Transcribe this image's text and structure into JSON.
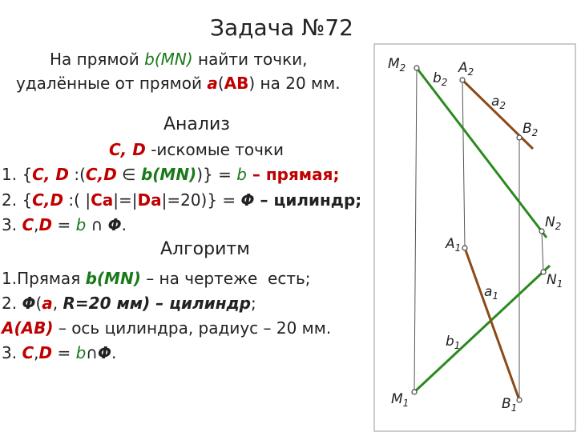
{
  "title": "Задача №72",
  "task": {
    "lines": [
      [
        "На прямой ",
        "b(MN)",
        " найти точки,"
      ],
      [
        "удалённые от прямой ",
        "a",
        "(",
        "AB",
        ") на 20 мм."
      ]
    ]
  },
  "analysis": {
    "heading": "Анализ",
    "lines": [
      [
        "C, D",
        " -искомые точки"
      ],
      [
        "1. {",
        "C, D",
        " :(",
        "C,D",
        " ∈ ",
        "b(MN)",
        ")} = ",
        "b",
        " – прямая;"
      ],
      [
        "2. {",
        "C,D",
        " :( |",
        "Ca",
        "|=|",
        "Da",
        "|=20)} = ",
        "Φ",
        " – цилиндр;"
      ],
      [
        "3. ",
        "C",
        ",",
        "D",
        " = ",
        "b",
        " ∩ ",
        "Φ",
        "."
      ]
    ]
  },
  "algorithm": {
    "heading": "Алгоритм",
    "lines": [
      [
        "1.Прямая ",
        "b(MN)",
        " – на чертеже  есть;"
      ],
      [
        "2. ",
        "Φ",
        "(",
        "a",
        ", ",
        "R=20 мм) – цилиндр",
        ";"
      ],
      [
        "A(AB)",
        " – ось цилиндра, радиус – 20 мм."
      ],
      [
        "3. ",
        "C",
        ",",
        "D",
        " = ",
        "b",
        "∩",
        "Φ",
        "."
      ]
    ]
  },
  "drawing": {
    "labels": [
      {
        "name": "M",
        "index": "2"
      },
      {
        "name": "b",
        "index": "2"
      },
      {
        "name": "A",
        "index": "2"
      },
      {
        "name": "a",
        "index": "2"
      },
      {
        "name": "B",
        "index": "2"
      },
      {
        "name": "N",
        "index": "2"
      },
      {
        "name": "A",
        "index": "1"
      },
      {
        "name": "a",
        "index": "1"
      },
      {
        "name": "N",
        "index": "1"
      },
      {
        "name": "b",
        "index": "1"
      },
      {
        "name": "M",
        "index": "1"
      },
      {
        "name": "B",
        "index": "1"
      }
    ]
  }
}
